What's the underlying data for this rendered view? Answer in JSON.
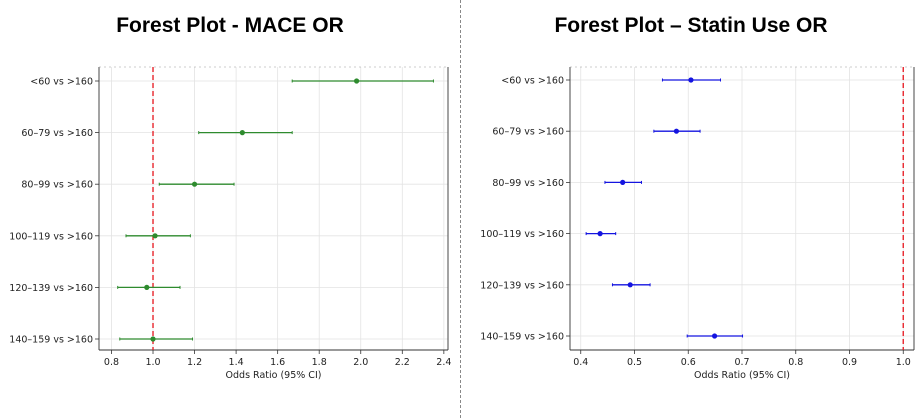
{
  "chart_data": [
    {
      "type": "forest",
      "title": "Forest Plot - MACE OR",
      "xlabel": "Odds Ratio (95% CI)",
      "xlim": [
        0.74,
        2.42
      ],
      "xticks": [
        "0.8",
        "1.0",
        "1.2",
        "1.4",
        "1.6",
        "1.8",
        "2.0",
        "2.2",
        "2.4"
      ],
      "reference_line": 1.0,
      "grid": true,
      "color": "#2e8b2e",
      "ref_color": "#e8242c",
      "categories": [
        "<60 vs >160",
        "60–79 vs >160",
        "80–99 vs >160",
        "100–119 vs >160",
        "120–139 vs >160",
        "140–159 vs >160"
      ],
      "estimates": [
        1.98,
        1.43,
        1.2,
        1.01,
        0.97,
        1.0
      ],
      "lower": [
        1.67,
        1.22,
        1.03,
        0.87,
        0.83,
        0.84
      ],
      "upper": [
        2.35,
        1.67,
        1.39,
        1.18,
        1.13,
        1.19
      ]
    },
    {
      "type": "forest",
      "title": "Forest Plot – Statin Use OR",
      "xlabel": "Odds Ratio (95% CI)",
      "xlim": [
        0.38,
        1.02
      ],
      "xticks": [
        "0.4",
        "0.5",
        "0.6",
        "0.7",
        "0.8",
        "0.9",
        "1.0"
      ],
      "reference_line": 1.0,
      "grid": true,
      "color": "#1414e0",
      "ref_color": "#e8242c",
      "categories": [
        "<60 vs >160",
        "60–79 vs >160",
        "80–99 vs >160",
        "100–119 vs >160",
        "120–139 vs >160",
        "140–159 vs >160"
      ],
      "estimates": [
        0.605,
        0.578,
        0.478,
        0.436,
        0.492,
        0.649
      ],
      "lower": [
        0.552,
        0.536,
        0.445,
        0.41,
        0.459,
        0.598
      ],
      "upper": [
        0.66,
        0.622,
        0.513,
        0.465,
        0.529,
        0.701
      ]
    }
  ]
}
